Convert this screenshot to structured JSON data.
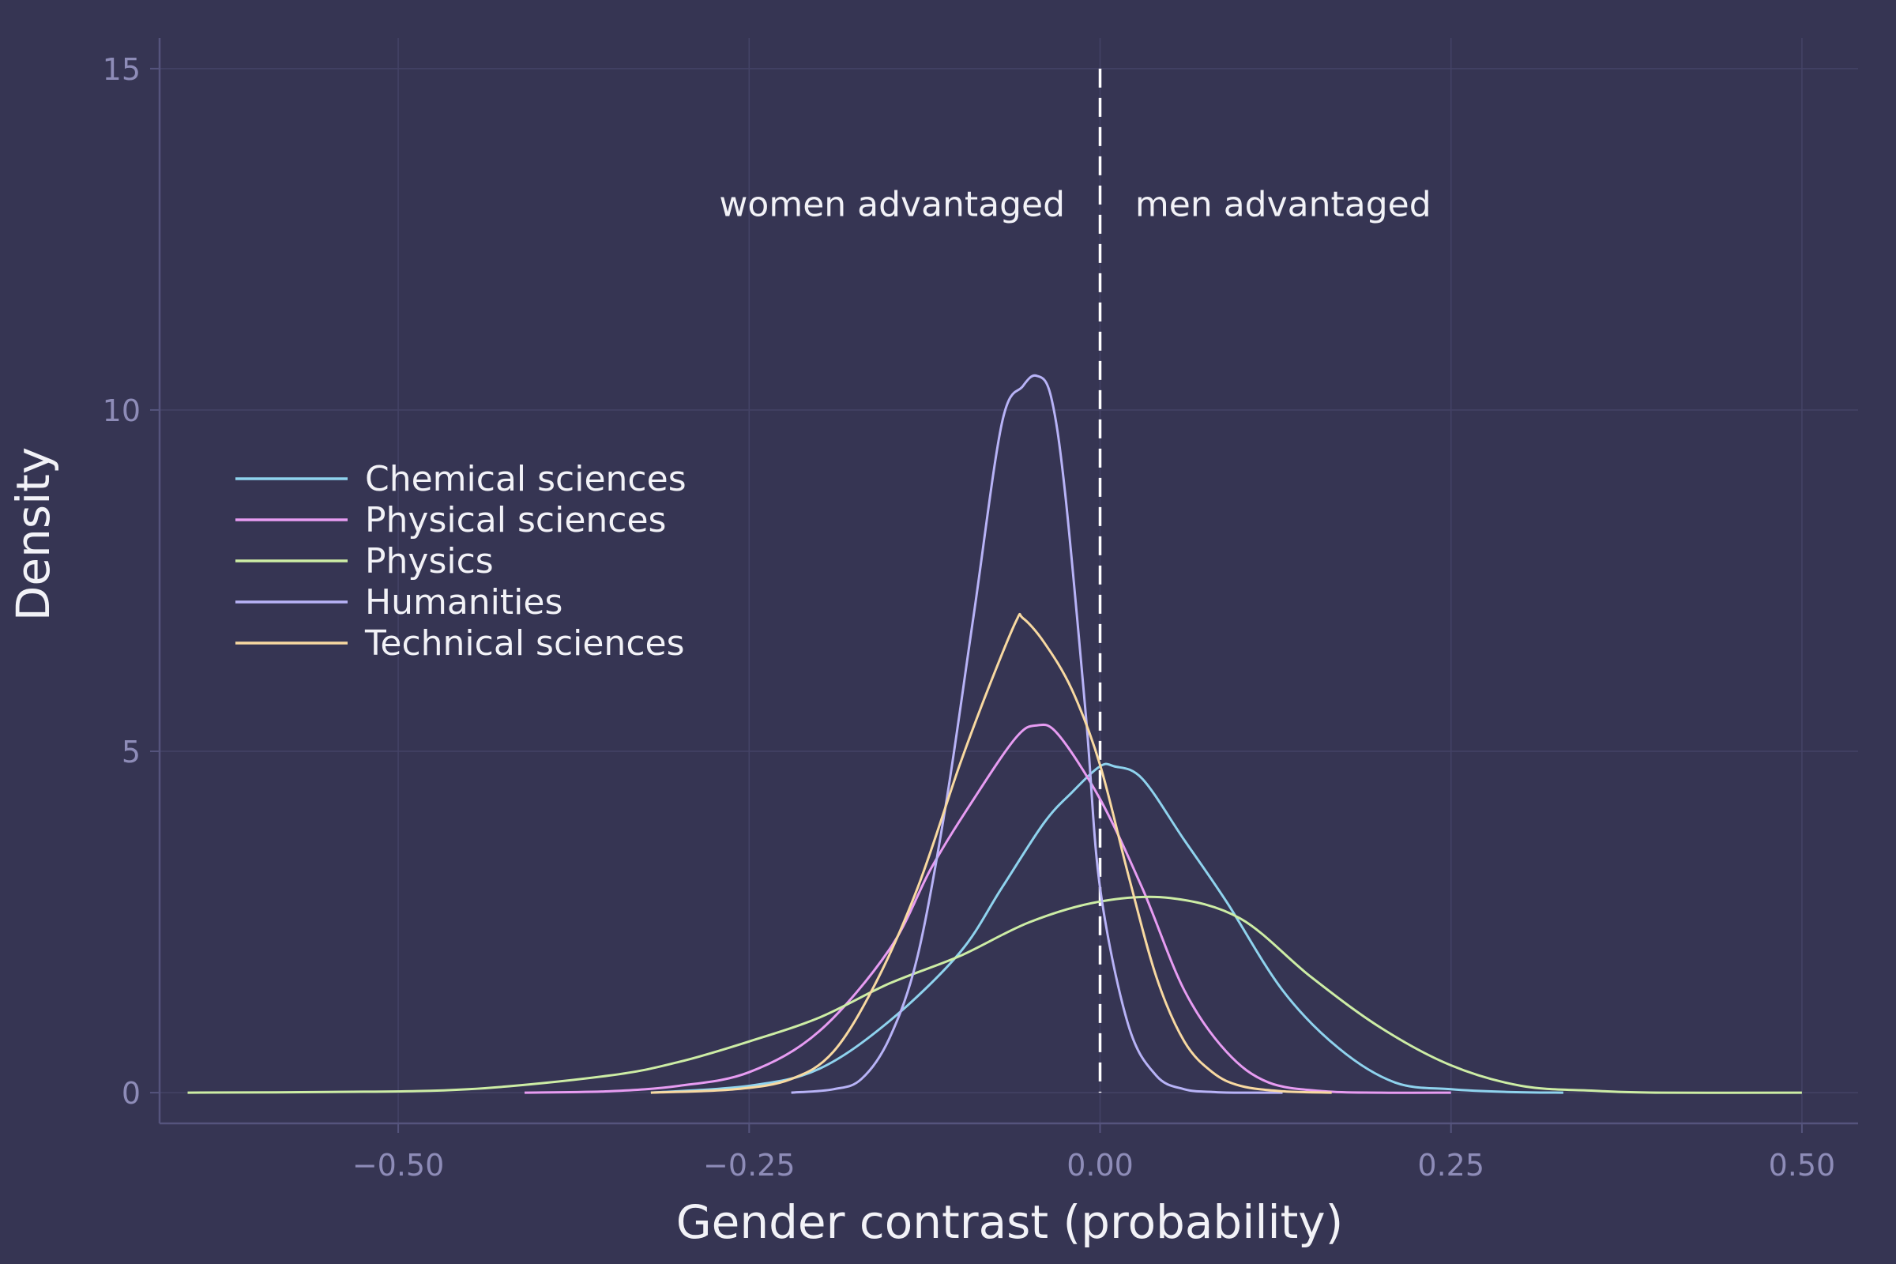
{
  "colors": {
    "background": "#363553",
    "grid": "#444366",
    "axis": "#55547d",
    "tick_text": "#8e8cb8",
    "text": "#f2f2f7"
  },
  "chart_data": {
    "type": "line",
    "xlabel": "Gender contrast (probability)",
    "ylabel": "Density",
    "xlim": [
      -0.67,
      0.54
    ],
    "ylim": [
      -0.45,
      15.45
    ],
    "xticks": [
      -0.5,
      -0.25,
      0.0,
      0.25,
      0.5
    ],
    "xtick_labels": [
      "−0.50",
      "−0.25",
      "0.00",
      "0.25",
      "0.50"
    ],
    "yticks": [
      0,
      5,
      10,
      15
    ],
    "ytick_labels": [
      "0",
      "5",
      "10",
      "15"
    ],
    "grid": true,
    "legend_position": "upper-left",
    "reference_line": {
      "x": 0.0,
      "style": "dashed"
    },
    "annotations": [
      {
        "text": "women advantaged",
        "x": -0.025,
        "y": 13.0,
        "anchor": "end"
      },
      {
        "text": "men advantaged",
        "x": 0.025,
        "y": 13.0,
        "anchor": "start"
      }
    ],
    "series": [
      {
        "name": "Chemical sciences",
        "color": "#8fd3ee",
        "x": [
          -0.32,
          -0.25,
          -0.2,
          -0.15,
          -0.1,
          -0.07,
          -0.04,
          -0.02,
          0.0,
          0.01,
          0.03,
          0.06,
          0.09,
          0.13,
          0.17,
          0.21,
          0.25,
          0.29,
          0.33
        ],
        "y": [
          0.0,
          0.1,
          0.35,
          1.05,
          2.05,
          3.0,
          3.95,
          4.4,
          4.78,
          4.78,
          4.6,
          3.7,
          2.8,
          1.5,
          0.65,
          0.15,
          0.05,
          0.01,
          0.0
        ]
      },
      {
        "name": "Physical sciences",
        "color": "#e79cf2",
        "x": [
          -0.41,
          -0.35,
          -0.3,
          -0.25,
          -0.2,
          -0.15,
          -0.12,
          -0.09,
          -0.06,
          -0.045,
          -0.03,
          0.0,
          0.03,
          0.06,
          0.09,
          0.12,
          0.16,
          0.2,
          0.25
        ],
        "y": [
          0.0,
          0.02,
          0.1,
          0.3,
          0.9,
          2.1,
          3.3,
          4.3,
          5.2,
          5.38,
          5.25,
          4.3,
          3.0,
          1.5,
          0.6,
          0.15,
          0.02,
          0.0,
          0.0
        ]
      },
      {
        "name": "Physics",
        "color": "#cdeda5",
        "x": [
          -0.65,
          -0.55,
          -0.45,
          -0.35,
          -0.3,
          -0.25,
          -0.2,
          -0.15,
          -0.1,
          -0.05,
          0.0,
          0.05,
          0.1,
          0.15,
          0.2,
          0.25,
          0.3,
          0.35,
          0.4,
          0.5
        ],
        "y": [
          0.0,
          0.01,
          0.05,
          0.25,
          0.45,
          0.75,
          1.1,
          1.6,
          2.0,
          2.5,
          2.8,
          2.85,
          2.55,
          1.7,
          0.95,
          0.4,
          0.1,
          0.03,
          0.0,
          0.0
        ]
      },
      {
        "name": "Humanities",
        "color": "#b8b3f7",
        "x": [
          -0.22,
          -0.19,
          -0.17,
          -0.15,
          -0.13,
          -0.11,
          -0.09,
          -0.07,
          -0.055,
          -0.045,
          -0.035,
          -0.025,
          -0.01,
          0.0,
          0.02,
          0.04,
          0.06,
          0.08,
          0.1,
          0.13
        ],
        "y": [
          0.0,
          0.05,
          0.2,
          0.8,
          2.0,
          4.2,
          7.0,
          9.8,
          10.35,
          10.5,
          10.2,
          8.8,
          5.5,
          3.0,
          1.0,
          0.25,
          0.05,
          0.01,
          0.0,
          0.0
        ]
      },
      {
        "name": "Technical sciences",
        "color": "#f8d9a1",
        "x": [
          -0.32,
          -0.26,
          -0.22,
          -0.19,
          -0.16,
          -0.13,
          -0.1,
          -0.08,
          -0.06,
          -0.055,
          -0.04,
          -0.02,
          0.0,
          0.02,
          0.04,
          0.06,
          0.08,
          0.1,
          0.13,
          0.165
        ],
        "y": [
          0.0,
          0.05,
          0.2,
          0.6,
          1.6,
          3.0,
          4.8,
          5.9,
          6.9,
          6.95,
          6.6,
          5.9,
          4.8,
          3.2,
          1.7,
          0.75,
          0.3,
          0.1,
          0.02,
          0.0
        ]
      }
    ]
  }
}
